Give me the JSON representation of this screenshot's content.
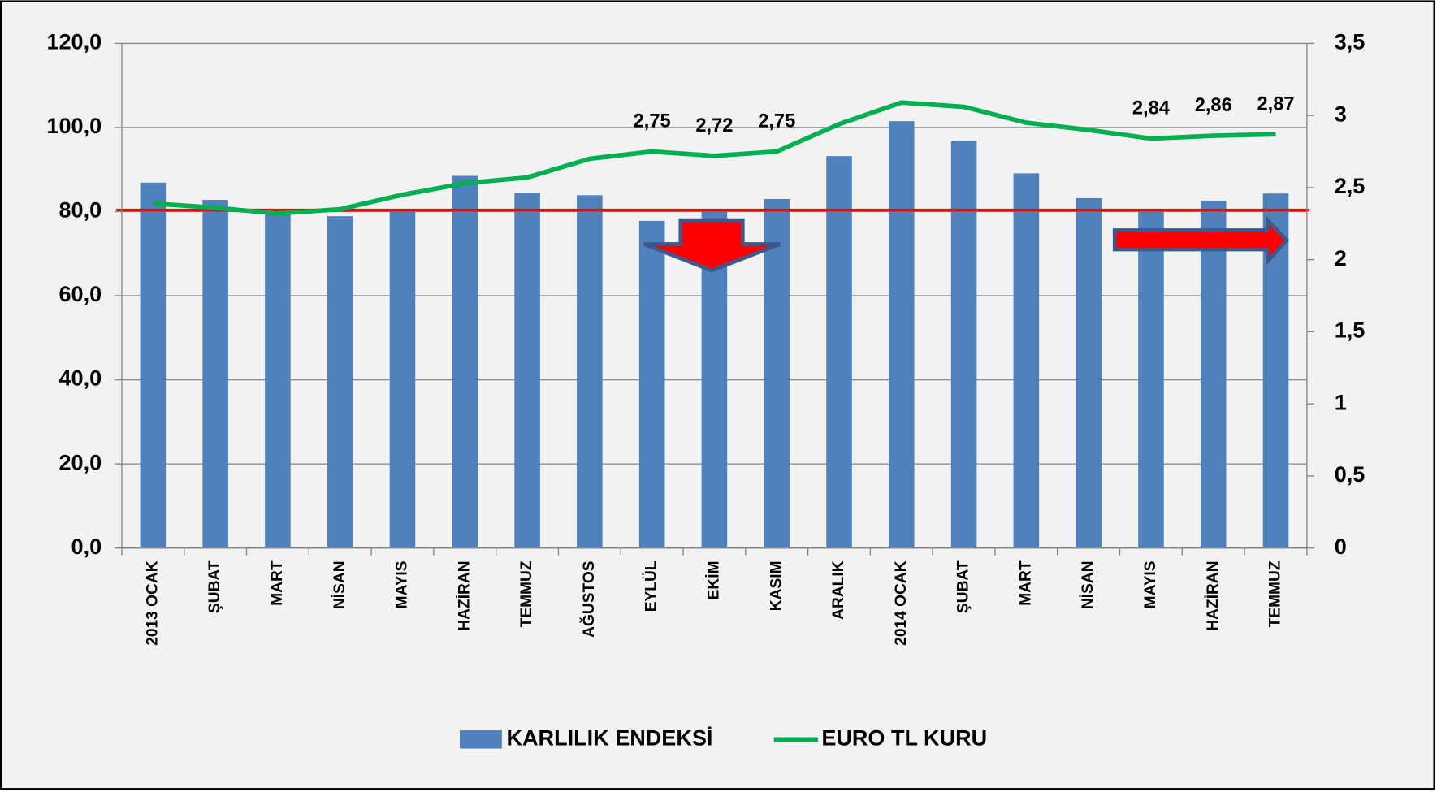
{
  "chart_data": {
    "type": "bar_line",
    "categories": [
      "2013 OCAK",
      "ŞUBAT",
      "MART",
      "NİSAN",
      "MAYIS",
      "HAZİRAN",
      "TEMMUZ",
      "AĞUSTOS",
      "EYLÜL",
      "EKİM",
      "KASIM",
      "ARALIK",
      "2014 OCAK",
      "ŞUBAT",
      "MART",
      "NİSAN",
      "MAYIS",
      "HAZİRAN",
      "TEMMUZ"
    ],
    "series": [
      {
        "name": "KARLILIK ENDEKSİ",
        "type": "bar",
        "color": "#4f81bd",
        "values": [
          86.9,
          82.8,
          79.7,
          78.9,
          80.4,
          88.5,
          84.5,
          83.9,
          77.8,
          80.6,
          83.0,
          93.2,
          101.5,
          96.9,
          89.1,
          83.2,
          80.4,
          82.6,
          84.3
        ]
      },
      {
        "name": "EURO TL KURU",
        "type": "line",
        "color": "#00b050",
        "axis": "y2",
        "values": [
          2.39,
          2.36,
          2.32,
          2.35,
          2.45,
          2.53,
          2.57,
          2.7,
          2.75,
          2.72,
          2.75,
          2.94,
          3.09,
          3.06,
          2.95,
          2.9,
          2.84,
          2.86,
          2.87
        ],
        "value_labels": [
          null,
          null,
          null,
          null,
          null,
          null,
          null,
          null,
          "2,75",
          "2,72",
          "2,75",
          null,
          null,
          null,
          null,
          null,
          "2,84",
          "2,86",
          "2,87"
        ]
      }
    ],
    "ylim": [
      0,
      120
    ],
    "yticks": [
      {
        "value": 0,
        "label": "0,0"
      },
      {
        "value": 20,
        "label": "20,0"
      },
      {
        "value": 40,
        "label": "40,0"
      },
      {
        "value": 60,
        "label": "60,0"
      },
      {
        "value": 80,
        "label": "80,0"
      },
      {
        "value": 100,
        "label": "100,0"
      },
      {
        "value": 120,
        "label": "120,0"
      }
    ],
    "y2lim": [
      0,
      3.5
    ],
    "y2ticks": [
      0,
      {
        "value": 0.5,
        "label": "0,5"
      },
      1,
      {
        "value": 1.5,
        "label": "1,5"
      },
      2,
      {
        "value": 2.5,
        "label": "2,5"
      },
      3,
      {
        "value": 3.5,
        "label": "3,5"
      }
    ],
    "grid": true,
    "legend": "bottom"
  }
}
